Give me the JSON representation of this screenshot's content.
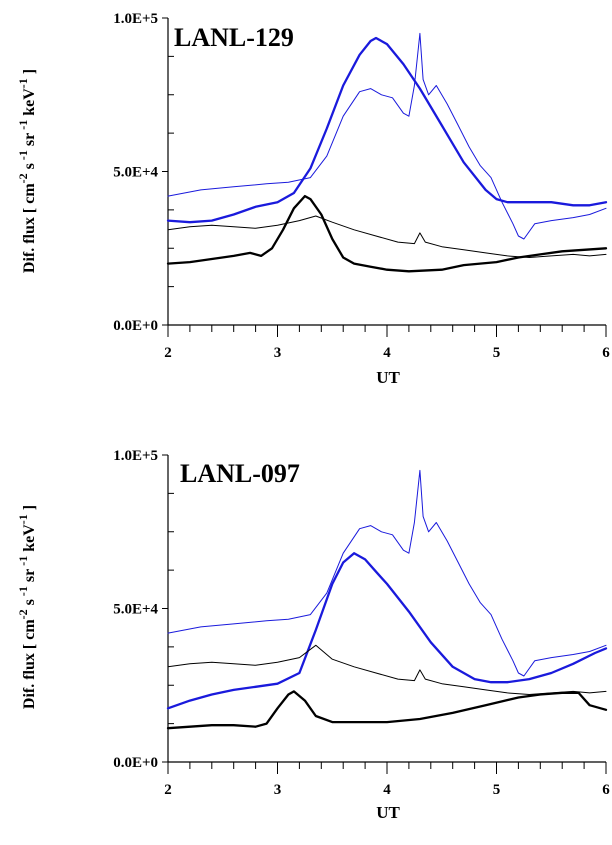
{
  "chart_data": [
    {
      "type": "line",
      "title": "LANL-129",
      "xlabel": "UT",
      "ylabel": "Dif. flux [ cm -2 s -1 sr -1 keV -1 ]",
      "ylabel_parts": [
        "Dif. flux [ cm",
        "-2",
        " s",
        " -1",
        " sr",
        " -1",
        " keV",
        "-1",
        " ]"
      ],
      "xlim": [
        2,
        6
      ],
      "ylim": [
        0,
        100000
      ],
      "xticks": [
        2,
        3,
        4,
        5,
        6
      ],
      "xtick_labels": [
        "2",
        "3",
        "4",
        "5",
        "6"
      ],
      "yticks": [
        0,
        50000,
        100000
      ],
      "ytick_labels": [
        "0.0E+0",
        "5.0E+4",
        "1.0E+5"
      ],
      "series": [
        {
          "color": "#1a1adc",
          "style": "thick",
          "x": [
            2.0,
            2.2,
            2.4,
            2.6,
            2.8,
            3.0,
            3.15,
            3.3,
            3.45,
            3.6,
            3.75,
            3.85,
            3.9,
            4.0,
            4.15,
            4.3,
            4.5,
            4.7,
            4.9,
            5.0,
            5.1,
            5.3,
            5.5,
            5.7,
            5.85,
            6.0
          ],
          "y": [
            34000,
            33500,
            34000,
            36000,
            38500,
            40000,
            43000,
            51000,
            64000,
            78000,
            88000,
            92500,
            93500,
            91500,
            85000,
            77000,
            65000,
            53000,
            44000,
            41000,
            40000,
            40000,
            40000,
            39000,
            39000,
            40000
          ]
        },
        {
          "color": "#1a1adc",
          "style": "thin",
          "x": [
            2.0,
            2.3,
            2.6,
            2.9,
            3.1,
            3.3,
            3.45,
            3.6,
            3.75,
            3.85,
            3.95,
            4.05,
            4.15,
            4.2,
            4.25,
            4.3,
            4.33,
            4.38,
            4.45,
            4.55,
            4.65,
            4.75,
            4.85,
            4.95,
            5.05,
            5.15,
            5.2,
            5.25,
            5.35,
            5.5,
            5.7,
            5.85,
            6.0
          ],
          "y": [
            42000,
            44000,
            45000,
            46000,
            46500,
            48000,
            55000,
            68000,
            76000,
            77000,
            75000,
            74000,
            69000,
            68000,
            78000,
            95000,
            80000,
            75000,
            78000,
            72000,
            65000,
            58000,
            52000,
            48000,
            40000,
            33000,
            29000,
            28000,
            33000,
            34000,
            35000,
            36000,
            38000
          ]
        },
        {
          "color": "#000000",
          "style": "thick",
          "x": [
            2.0,
            2.2,
            2.4,
            2.6,
            2.75,
            2.85,
            2.95,
            3.05,
            3.15,
            3.25,
            3.3,
            3.4,
            3.5,
            3.6,
            3.7,
            3.85,
            4.0,
            4.2,
            4.5,
            4.7,
            5.0,
            5.2,
            5.4,
            5.6,
            5.8,
            6.0
          ],
          "y": [
            20000,
            20500,
            21500,
            22500,
            23500,
            22500,
            25000,
            31000,
            38000,
            42000,
            41000,
            36000,
            28000,
            22000,
            20000,
            19000,
            18000,
            17500,
            18000,
            19500,
            20500,
            22000,
            23000,
            24000,
            24500,
            25000
          ]
        },
        {
          "color": "#000000",
          "style": "thin",
          "x": [
            2.0,
            2.2,
            2.4,
            2.6,
            2.8,
            3.0,
            3.2,
            3.35,
            3.5,
            3.7,
            3.9,
            4.1,
            4.25,
            4.3,
            4.35,
            4.5,
            4.7,
            4.9,
            5.1,
            5.3,
            5.5,
            5.7,
            5.85,
            6.0
          ],
          "y": [
            31000,
            32000,
            32500,
            32000,
            31500,
            32500,
            34000,
            35500,
            33500,
            31000,
            29000,
            27000,
            26500,
            30000,
            27000,
            25500,
            24500,
            23500,
            22500,
            22000,
            22500,
            23000,
            22500,
            23000
          ]
        }
      ]
    },
    {
      "type": "line",
      "title": "LANL-097",
      "xlabel": "UT",
      "ylabel": "Dif. flux [ cm -2 s -1 sr -1 keV -1 ]",
      "ylabel_parts": [
        "Dif. flux [ cm",
        "-2",
        " s",
        " -1",
        " sr",
        " -1",
        " keV",
        "-1",
        " ]"
      ],
      "xlim": [
        2,
        6
      ],
      "ylim": [
        0,
        100000
      ],
      "xticks": [
        2,
        3,
        4,
        5,
        6
      ],
      "xtick_labels": [
        "2",
        "3",
        "4",
        "5",
        "6"
      ],
      "yticks": [
        0,
        50000,
        100000
      ],
      "ytick_labels": [
        "0.0E+0",
        "5.0E+4",
        "1.0E+5"
      ],
      "series": [
        {
          "color": "#1a1adc",
          "style": "thick",
          "x": [
            2.0,
            2.2,
            2.4,
            2.6,
            2.8,
            3.0,
            3.2,
            3.35,
            3.5,
            3.6,
            3.7,
            3.8,
            3.9,
            4.0,
            4.2,
            4.4,
            4.6,
            4.8,
            4.95,
            5.1,
            5.3,
            5.5,
            5.7,
            5.9,
            6.0
          ],
          "y": [
            17500,
            20000,
            22000,
            23500,
            24500,
            25500,
            29000,
            43000,
            58000,
            65000,
            68000,
            66000,
            62000,
            58000,
            49000,
            39000,
            31000,
            27000,
            26000,
            26000,
            27000,
            29000,
            32000,
            35500,
            37000
          ]
        },
        {
          "color": "#1a1adc",
          "style": "thin",
          "x": [
            2.0,
            2.3,
            2.6,
            2.9,
            3.1,
            3.3,
            3.45,
            3.6,
            3.75,
            3.85,
            3.95,
            4.05,
            4.15,
            4.2,
            4.25,
            4.3,
            4.33,
            4.38,
            4.45,
            4.55,
            4.65,
            4.75,
            4.85,
            4.95,
            5.05,
            5.15,
            5.2,
            5.25,
            5.35,
            5.5,
            5.7,
            5.85,
            6.0
          ],
          "y": [
            42000,
            44000,
            45000,
            46000,
            46500,
            48000,
            55000,
            68000,
            76000,
            77000,
            75000,
            74000,
            69000,
            68000,
            78000,
            95000,
            80000,
            75000,
            78000,
            72000,
            65000,
            58000,
            52000,
            48000,
            40000,
            33000,
            29000,
            28000,
            33000,
            34000,
            35000,
            36000,
            38000
          ]
        },
        {
          "color": "#000000",
          "style": "thick",
          "x": [
            2.0,
            2.2,
            2.4,
            2.6,
            2.8,
            2.9,
            3.0,
            3.1,
            3.15,
            3.25,
            3.35,
            3.5,
            3.7,
            4.0,
            4.3,
            4.6,
            4.9,
            5.2,
            5.4,
            5.6,
            5.75,
            5.85,
            6.0
          ],
          "y": [
            11000,
            11500,
            12000,
            12000,
            11500,
            12500,
            17500,
            22000,
            23000,
            20000,
            15000,
            13000,
            13000,
            13000,
            14000,
            16000,
            18500,
            21000,
            22000,
            22500,
            22500,
            18500,
            17000
          ]
        },
        {
          "color": "#000000",
          "style": "thin",
          "x": [
            2.0,
            2.2,
            2.4,
            2.6,
            2.8,
            3.0,
            3.2,
            3.35,
            3.5,
            3.7,
            3.9,
            4.1,
            4.25,
            4.3,
            4.35,
            4.5,
            4.7,
            4.9,
            5.1,
            5.3,
            5.5,
            5.7,
            5.85,
            6.0
          ],
          "y": [
            31000,
            32000,
            32500,
            32000,
            31500,
            32500,
            34000,
            38000,
            33500,
            31000,
            29000,
            27000,
            26500,
            30000,
            27000,
            25500,
            24500,
            23500,
            22500,
            22000,
            22500,
            23000,
            22500,
            23000
          ]
        }
      ]
    }
  ]
}
